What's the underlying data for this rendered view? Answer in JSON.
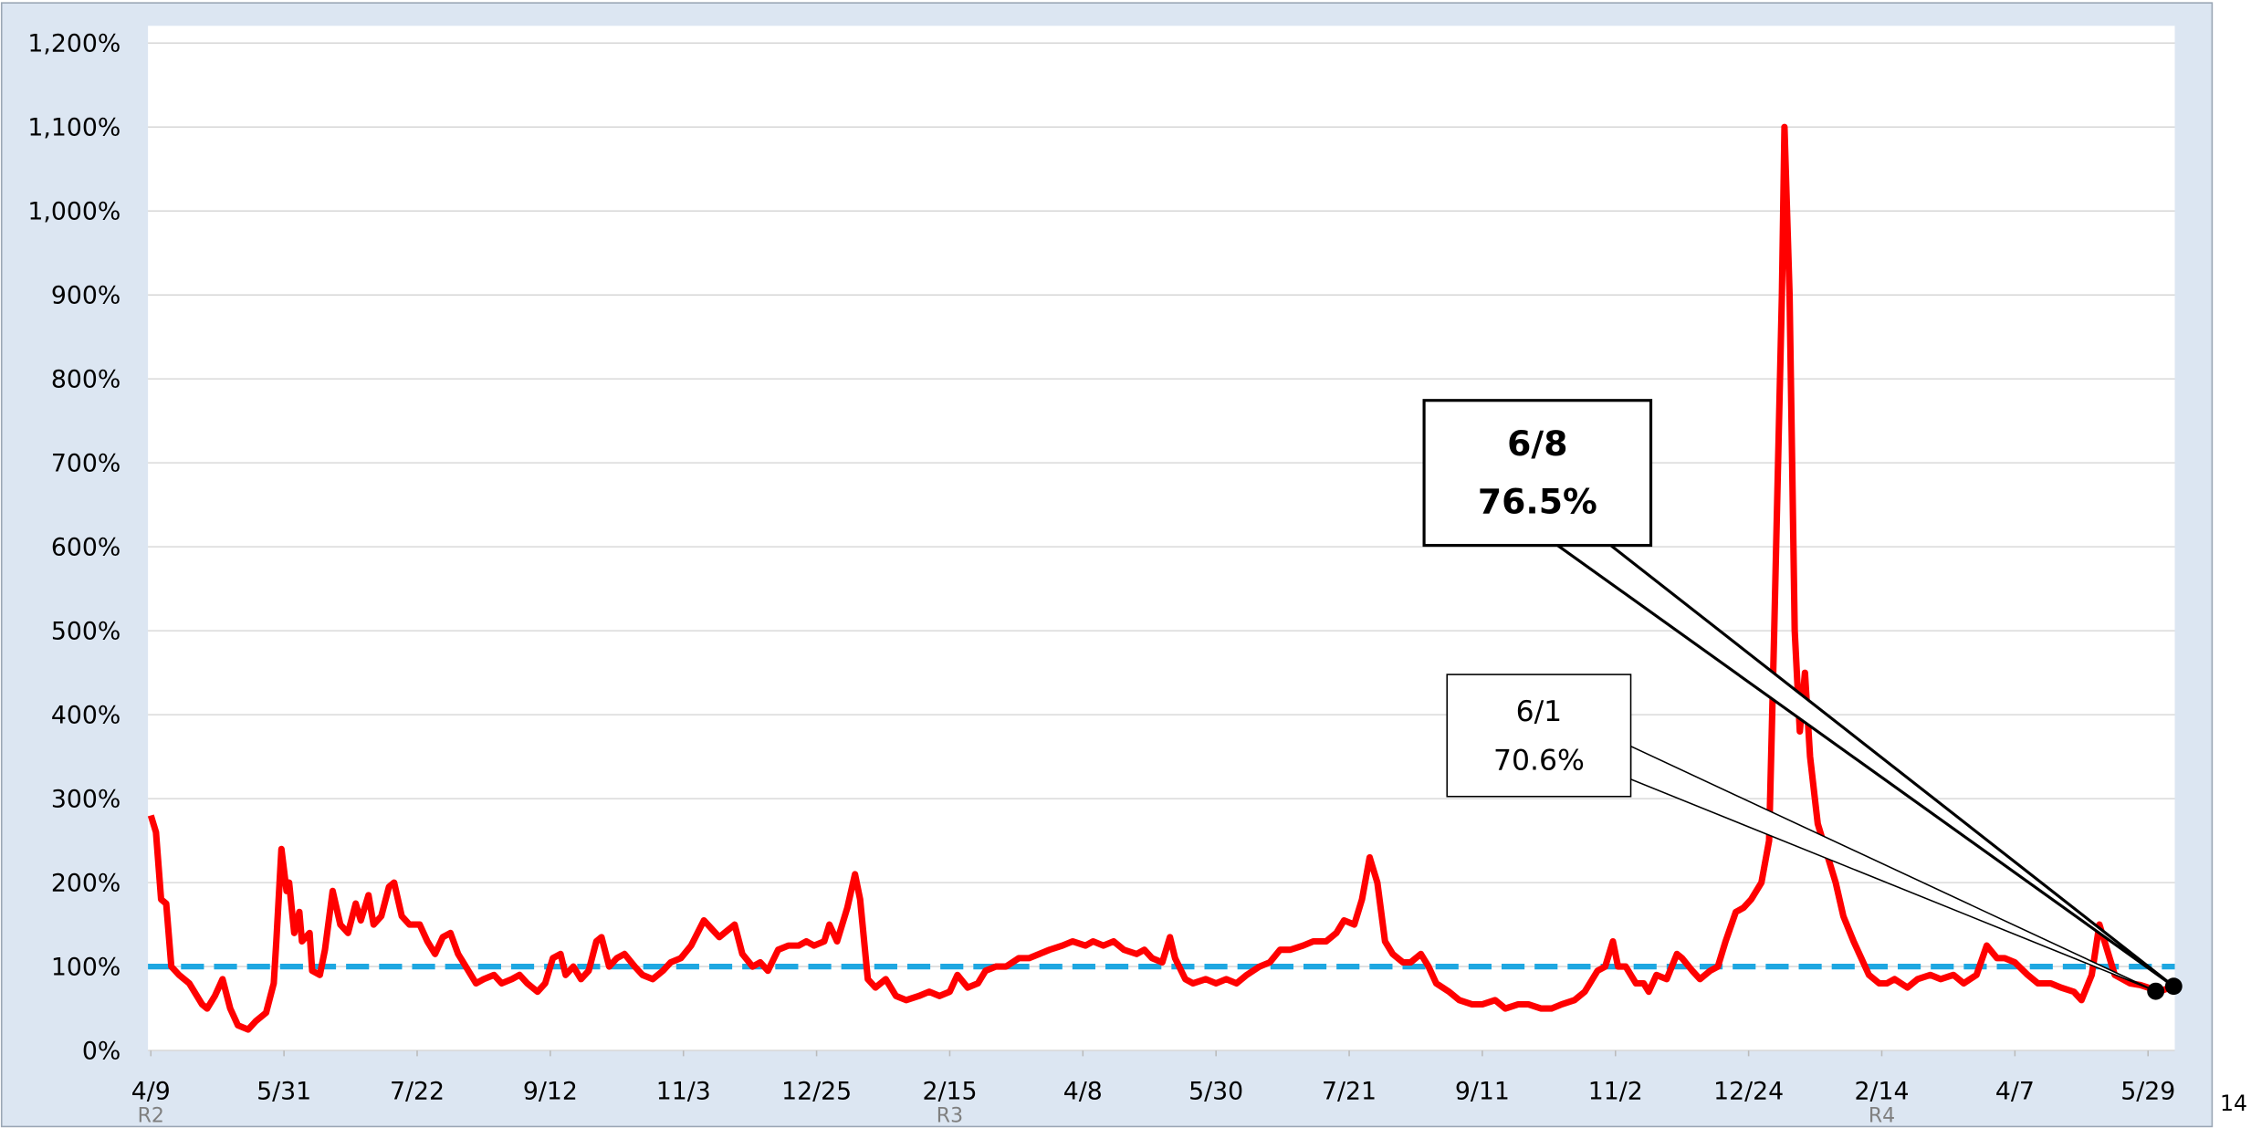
{
  "chart_data": {
    "type": "line",
    "x": [
      0,
      2,
      4,
      6,
      8,
      11,
      15,
      20,
      22,
      25,
      28,
      31,
      34,
      38,
      41,
      45,
      48,
      49,
      51,
      53,
      54,
      56,
      58,
      59,
      62,
      63,
      66,
      68,
      71,
      74,
      77,
      80,
      82,
      85,
      87,
      90,
      93,
      95,
      98,
      101,
      105,
      108,
      111,
      114,
      117,
      120,
      124,
      127,
      130,
      134,
      137,
      141,
      144,
      147,
      151,
      154,
      157,
      160,
      162,
      165,
      168,
      171,
      174,
      176,
      179,
      182,
      185,
      189,
      192,
      196,
      200,
      203,
      207,
      211,
      216,
      219,
      222,
      226,
      228,
      231,
      235,
      238,
      241,
      245,
      249,
      253,
      256,
      259,
      263,
      265,
      268,
      272,
      275,
      277,
      280,
      283,
      287,
      291,
      295,
      300,
      304,
      308,
      312,
      315,
      319,
      323,
      326,
      330,
      334,
      339,
      343,
      347,
      351,
      356,
      360,
      365,
      368,
      372,
      376,
      380,
      385,
      388,
      391,
      395,
      398,
      400,
      404,
      407,
      412,
      416,
      420,
      424,
      428,
      433,
      437,
      441,
      445,
      450,
      454,
      459,
      463,
      466,
      470,
      473,
      476,
      479,
      482,
      485,
      489,
      492,
      496,
      499,
      502,
      507,
      511,
      516,
      520,
      525,
      529,
      534,
      538,
      543,
      547,
      551,
      556,
      560,
      565,
      568,
      571,
      573,
      576,
      580,
      583,
      585,
      588,
      592,
      596,
      598,
      602,
      605,
      609,
      612,
      615,
      619,
      622,
      625,
      629,
      632,
      634,
      637,
      638,
      640,
      642,
      644,
      646,
      648,
      651,
      655,
      658,
      661,
      665,
      668,
      671,
      675,
      678,
      681,
      686,
      690,
      695,
      699,
      704,
      708,
      713,
      717,
      721,
      724,
      728,
      733,
      737,
      742,
      746,
      751,
      754,
      758,
      761,
      764,
      767,
      770,
      773,
      777,
      780,
      783,
      786,
      790
    ],
    "series": [
      {
        "color": "#ff0000",
        "values": [
          280,
          260,
          180,
          175,
          100,
          90,
          80,
          55,
          50,
          65,
          85,
          50,
          30,
          25,
          35,
          45,
          80,
          130,
          240,
          190,
          200,
          140,
          165,
          130,
          140,
          95,
          90,
          120,
          190,
          150,
          140,
          175,
          155,
          185,
          150,
          160,
          195,
          200,
          160,
          150,
          150,
          130,
          115,
          135,
          140,
          115,
          95,
          80,
          85,
          90,
          80,
          85,
          90,
          80,
          70,
          80,
          110,
          115,
          90,
          100,
          85,
          95,
          130,
          135,
          100,
          110,
          115,
          100,
          90,
          85,
          95,
          105,
          110,
          125,
          155,
          145,
          135,
          145,
          150,
          115,
          100,
          105,
          95,
          120,
          125,
          125,
          130,
          125,
          130,
          150,
          130,
          170,
          210,
          180,
          85,
          75,
          85,
          65,
          60,
          65,
          70,
          65,
          70,
          90,
          75,
          80,
          95,
          100,
          100,
          110,
          110,
          115,
          120,
          125,
          130,
          125,
          130,
          125,
          130,
          120,
          115,
          120,
          110,
          105,
          135,
          110,
          85,
          80,
          85,
          80,
          85,
          80,
          90,
          100,
          105,
          120,
          120,
          125,
          130,
          130,
          140,
          155,
          150,
          180,
          230,
          200,
          130,
          115,
          105,
          105,
          115,
          100,
          80,
          70,
          60,
          55,
          55,
          60,
          50,
          55,
          55,
          50,
          50,
          55,
          60,
          70,
          95,
          100,
          130,
          100,
          100,
          80,
          80,
          70,
          90,
          85,
          115,
          110,
          95,
          85,
          95,
          100,
          130,
          165,
          170,
          180,
          200,
          250,
          500,
          900,
          1100,
          900,
          500,
          380,
          450,
          350,
          270,
          230,
          200,
          160,
          130,
          110,
          90,
          80,
          80,
          85,
          75,
          85,
          90,
          85,
          90,
          80,
          90,
          125,
          110,
          110,
          105,
          90,
          80,
          80,
          75,
          70,
          60,
          90,
          150,
          120,
          90,
          85,
          80,
          78,
          75,
          70.6,
          72,
          76.5
        ]
      }
    ],
    "xlim": [
      0,
      791
    ],
    "xticks": [
      {
        "value": 0,
        "label": "4/9",
        "era": "R2"
      },
      {
        "value": 52,
        "label": "5/31"
      },
      {
        "value": 104,
        "label": "7/22"
      },
      {
        "value": 156,
        "label": "9/12"
      },
      {
        "value": 208,
        "label": "11/3"
      },
      {
        "value": 260,
        "label": "12/25"
      },
      {
        "value": 312,
        "label": "2/15",
        "era": "R3"
      },
      {
        "value": 364,
        "label": "4/8"
      },
      {
        "value": 416,
        "label": "5/30"
      },
      {
        "value": 468,
        "label": "7/21"
      },
      {
        "value": 520,
        "label": "9/11"
      },
      {
        "value": 572,
        "label": "11/2"
      },
      {
        "value": 624,
        "label": "12/24"
      },
      {
        "value": 676,
        "label": "2/14",
        "era": "R4"
      },
      {
        "value": 728,
        "label": "4/7"
      },
      {
        "value": 780,
        "label": "5/29"
      }
    ],
    "ylim": [
      0,
      1200
    ],
    "yticks": [
      {
        "value": 0,
        "label": "0%"
      },
      {
        "value": 100,
        "label": "100%"
      },
      {
        "value": 200,
        "label": "200%"
      },
      {
        "value": 300,
        "label": "300%"
      },
      {
        "value": 400,
        "label": "400%"
      },
      {
        "value": 500,
        "label": "500%"
      },
      {
        "value": 600,
        "label": "600%"
      },
      {
        "value": 700,
        "label": "700%"
      },
      {
        "value": 800,
        "label": "800%"
      },
      {
        "value": 900,
        "label": "900%"
      },
      {
        "value": 1000,
        "label": "1,000%"
      },
      {
        "value": 1100,
        "label": "1,100%"
      },
      {
        "value": 1200,
        "label": "1,200%"
      }
    ],
    "grid": true,
    "reference_line": {
      "value": 100,
      "color": "#1ea7e1"
    },
    "annotations": [
      {
        "date": "6/8",
        "text": "76.5%",
        "x": 790,
        "y": 76.5,
        "bold": true
      },
      {
        "date": "6/1",
        "text": "70.6%",
        "x": 783,
        "y": 70.6,
        "bold": false
      }
    ],
    "page_number": "14"
  }
}
